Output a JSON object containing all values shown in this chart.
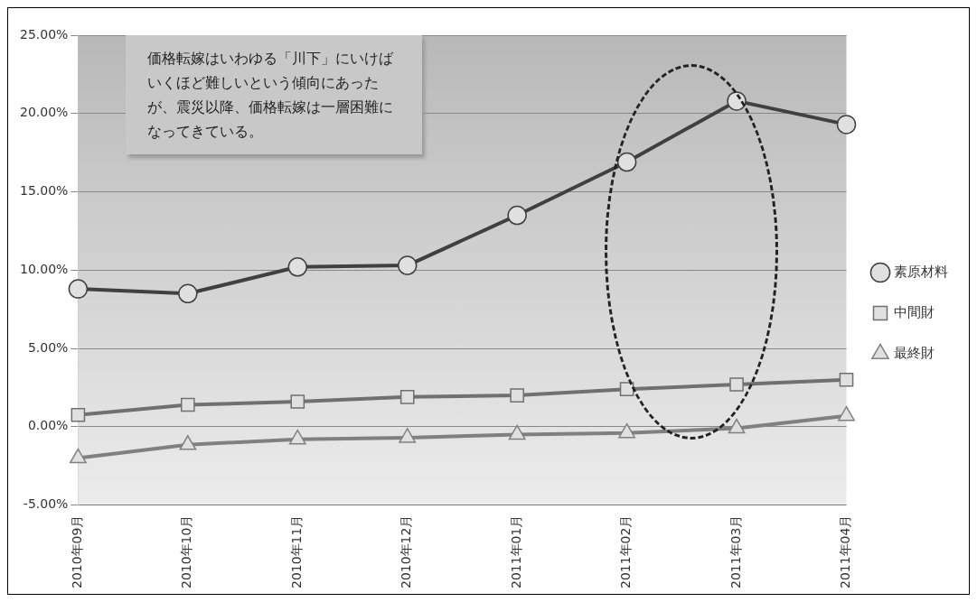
{
  "chart_data": {
    "type": "line",
    "categories": [
      "2010年09月",
      "2010年10月",
      "2010年11月",
      "2010年12月",
      "2011年01月",
      "2011年02月",
      "2011年03月",
      "2011年04月"
    ],
    "series": [
      {
        "name": "素原材料",
        "color": "#404040",
        "marker": "circle",
        "values": [
          8.8,
          8.5,
          10.2,
          10.3,
          13.5,
          16.9,
          20.8,
          19.3
        ]
      },
      {
        "name": "中間財",
        "color": "#707070",
        "marker": "square",
        "values": [
          0.75,
          1.4,
          1.6,
          1.9,
          2.0,
          2.4,
          2.7,
          3.0
        ]
      },
      {
        "name": "最終財",
        "color": "#808080",
        "marker": "triangle",
        "values": [
          -2.0,
          -1.15,
          -0.8,
          -0.7,
          -0.5,
          -0.4,
          -0.1,
          0.7
        ]
      }
    ],
    "ylim": [
      -5,
      25
    ],
    "yticks": [
      {
        "value": -5,
        "label": "-5.00%"
      },
      {
        "value": 0,
        "label": "0.00%"
      },
      {
        "value": 5,
        "label": "5.00%"
      },
      {
        "value": 10,
        "label": "10.00%"
      },
      {
        "value": 15,
        "label": "15.00%"
      },
      {
        "value": 20,
        "label": "20.00%"
      },
      {
        "value": 25,
        "label": "25.00%"
      }
    ],
    "grid": "y",
    "legend": "right",
    "annotations": [
      "価格転嫁はいわゆる「川下」にいけばいくほど難しいという傾向にあったが、震災以降、価格転嫁は一層困難になってきている。"
    ]
  }
}
